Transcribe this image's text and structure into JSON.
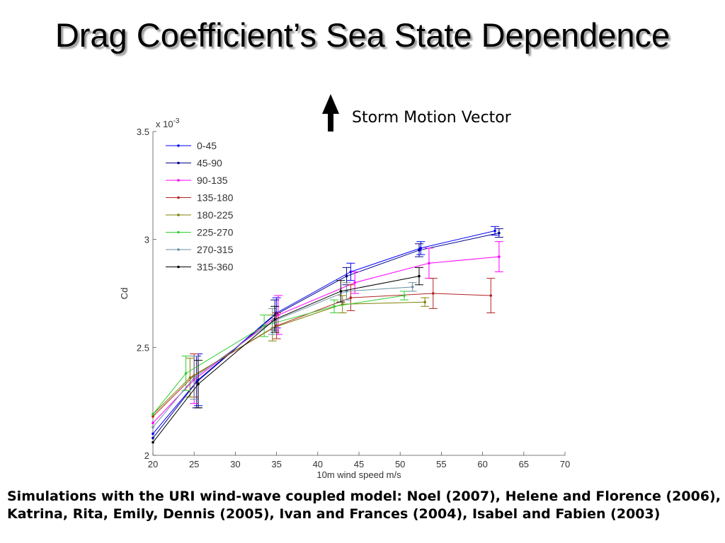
{
  "slide": {
    "title": "Drag Coefficient’s Sea State Dependence",
    "storm_label": "Storm Motion Vector",
    "caption": "Simulations with the URI wind-wave coupled model: Noel (2007), Helene and Florence (2006), Katrina, Rita, Emily, Dennis (2005), Ivan and Frances (2004), Isabel and Fabien (2003)"
  },
  "compass": {
    "sectors": [
      {
        "label": "0-45",
        "color": "#1010ff"
      },
      {
        "label": "45-90",
        "color": "#1010ff"
      },
      {
        "label": "90-135",
        "color": "#ff10ff"
      },
      {
        "label": "135-180",
        "color": "#ff0000"
      },
      {
        "label": "180-225",
        "color": "#7f6a00"
      },
      {
        "label": "225-270",
        "color": "#10ff10"
      },
      {
        "label": "270-315",
        "color": "#6f8f9f"
      },
      {
        "label": "315-360",
        "color": "#000000"
      }
    ]
  },
  "chart_data": {
    "type": "line",
    "xlabel": "10m wind speed m/s",
    "ylabel": "Cd",
    "y_multiplier": "x 10-3",
    "xlim": [
      20,
      70
    ],
    "ylim": [
      2,
      3.5
    ],
    "xticks": [
      "20",
      "25",
      "30",
      "35",
      "40",
      "45",
      "50",
      "55",
      "60",
      "65",
      "70"
    ],
    "yticks": [
      "2",
      "2.5",
      "3",
      "3.5"
    ],
    "legend_position": "top-left",
    "series": [
      {
        "name": "0-45",
        "color": "#0000ff",
        "points": [
          [
            20,
            2.1,
            null
          ],
          [
            25.5,
            2.35,
            0.12
          ],
          [
            35,
            2.66,
            0.07
          ],
          [
            44,
            2.85,
            0.04
          ],
          [
            52.5,
            2.96,
            0.03
          ],
          [
            61.5,
            3.04,
            0.02
          ]
        ]
      },
      {
        "name": "45-90",
        "color": "#00008b",
        "points": [
          [
            20,
            2.08,
            null
          ],
          [
            25.3,
            2.34,
            0.12
          ],
          [
            34.8,
            2.65,
            0.07
          ],
          [
            43.5,
            2.83,
            0.04
          ],
          [
            52.3,
            2.95,
            0.03
          ],
          [
            62,
            3.03,
            0.02
          ]
        ]
      },
      {
        "name": "90-135",
        "color": "#ff00ff",
        "points": [
          [
            20,
            2.15,
            null
          ],
          [
            25,
            2.35,
            0.11
          ],
          [
            35.2,
            2.65,
            0.09
          ],
          [
            44.5,
            2.8,
            0.05
          ],
          [
            53.5,
            2.89,
            0.07
          ],
          [
            62,
            2.92,
            0.07
          ]
        ]
      },
      {
        "name": "135-180",
        "color": "#b22222",
        "points": [
          [
            20,
            2.18,
            null
          ],
          [
            25,
            2.37,
            0.1
          ],
          [
            35,
            2.6,
            0.06
          ],
          [
            44,
            2.73,
            0.06
          ],
          [
            54,
            2.75,
            0.07
          ],
          [
            61,
            2.74,
            0.08
          ]
        ]
      },
      {
        "name": "180-225",
        "color": "#808000",
        "points": [
          [
            20,
            2.19,
            null
          ],
          [
            24.5,
            2.36,
            0.09
          ],
          [
            34.5,
            2.59,
            0.06
          ],
          [
            43,
            2.7,
            0.04
          ],
          [
            53,
            2.71,
            0.02
          ]
        ]
      },
      {
        "name": "225-270",
        "color": "#32cd32",
        "points": [
          [
            20,
            2.19,
            null
          ],
          [
            24,
            2.38,
            0.08
          ],
          [
            33.5,
            2.6,
            0.05
          ],
          [
            42,
            2.69,
            0.03
          ],
          [
            50.5,
            2.74,
            0.02
          ]
        ]
      },
      {
        "name": "270-315",
        "color": "#6a8fa0",
        "points": [
          [
            20,
            2.13,
            null
          ],
          [
            25,
            2.36,
            0.1
          ],
          [
            34.5,
            2.62,
            0.06
          ],
          [
            43.5,
            2.76,
            0.04
          ],
          [
            51.5,
            2.78,
            0.02
          ]
        ]
      },
      {
        "name": "315-360",
        "color": "#000000",
        "points": [
          [
            20,
            2.06,
            null
          ],
          [
            25.5,
            2.33,
            0.11
          ],
          [
            34.8,
            2.63,
            0.06
          ],
          [
            42.8,
            2.76,
            0.05
          ],
          [
            52.3,
            2.83,
            0.04
          ]
        ]
      }
    ]
  }
}
